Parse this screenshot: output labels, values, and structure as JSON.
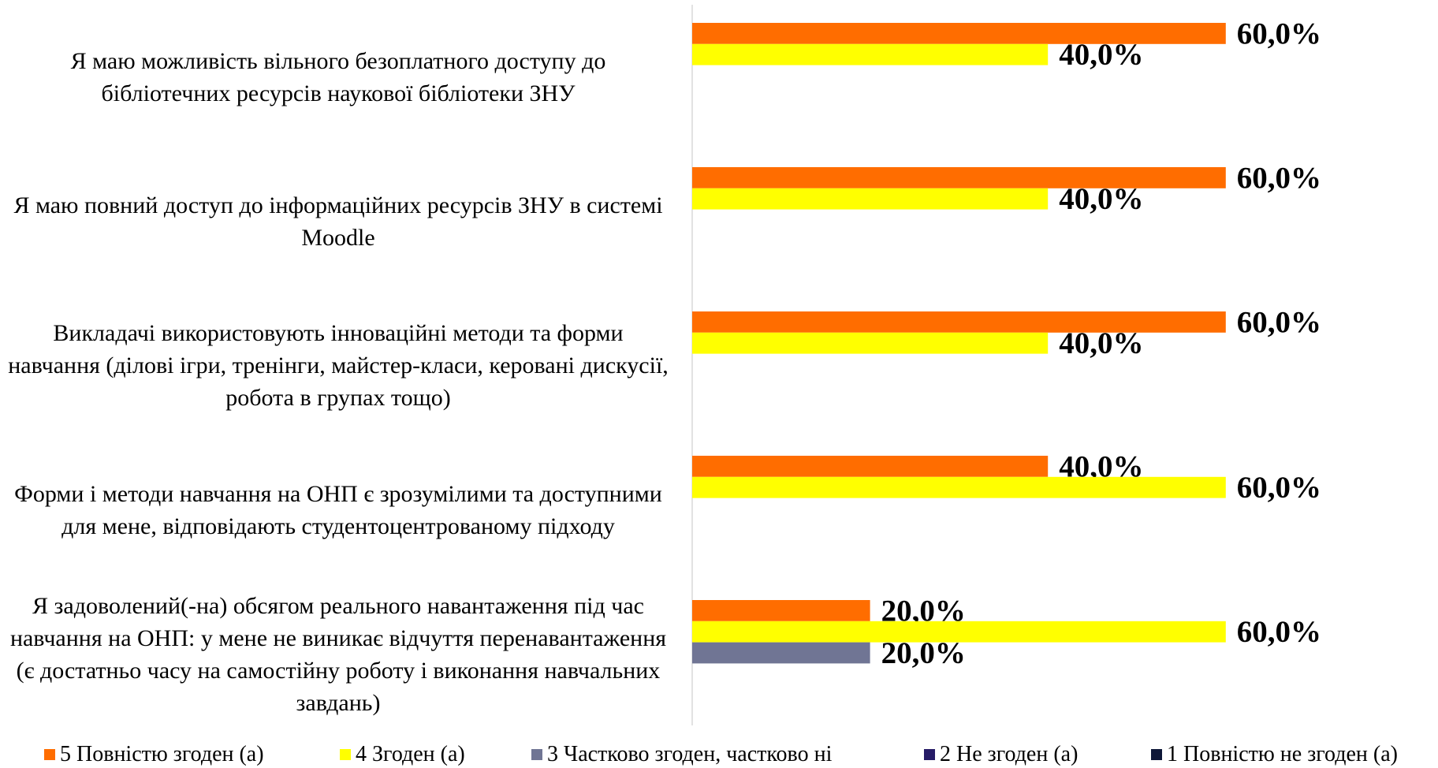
{
  "chart_data": {
    "type": "bar",
    "orientation": "horizontal",
    "categories": [
      "Я маю можливість вільного безоплатного доступу до бібліотечних ресурсів наукової бібліотеки ЗНУ",
      "Я маю повний доступ до інформаційних ресурсів ЗНУ в системі Moodle",
      "Викладачі використовують інноваційні методи та форми навчання (ділові ігри, тренінги, майстер-класи, керовані дискусії, робота в групах тощо)",
      "Форми і методи навчання на ОНП є зрозумілими та доступними для мене, відповідають студентоцентрованому підходу",
      "Я задоволений(-на) обсягом реального навантаження під час навчання на ОНП: у мене не виникає відчуття перенавантаження (є достатньо часу на самостійну роботу і виконання навчальних завдань)"
    ],
    "series": [
      {
        "name": "5 Повністю згоден (а)",
        "color": "#ff6d00",
        "values": [
          60,
          60,
          60,
          40,
          20
        ],
        "value_labels": [
          "60,0%",
          "60,0%",
          "60,0%",
          "40,0%",
          "20,0%"
        ]
      },
      {
        "name": "4 Згоден (а)",
        "color": "#ffff00",
        "values": [
          40,
          40,
          40,
          60,
          60
        ],
        "value_labels": [
          "40,0%",
          "40,0%",
          "40,0%",
          "60,0%",
          "60,0%"
        ]
      },
      {
        "name": "3 Частково згоден, частково ні",
        "color": "#707594",
        "values": [
          null,
          null,
          null,
          null,
          20
        ],
        "value_labels": [
          null,
          null,
          null,
          null,
          "20,0%"
        ]
      },
      {
        "name": "2 Не згоден (а)",
        "color": "#261b66",
        "values": [
          null,
          null,
          null,
          null,
          null
        ]
      },
      {
        "name": "1 Повністю не згоден (а)",
        "color": "#0e1738",
        "values": [
          null,
          null,
          null,
          null,
          null
        ]
      }
    ],
    "legend": "bottom"
  }
}
